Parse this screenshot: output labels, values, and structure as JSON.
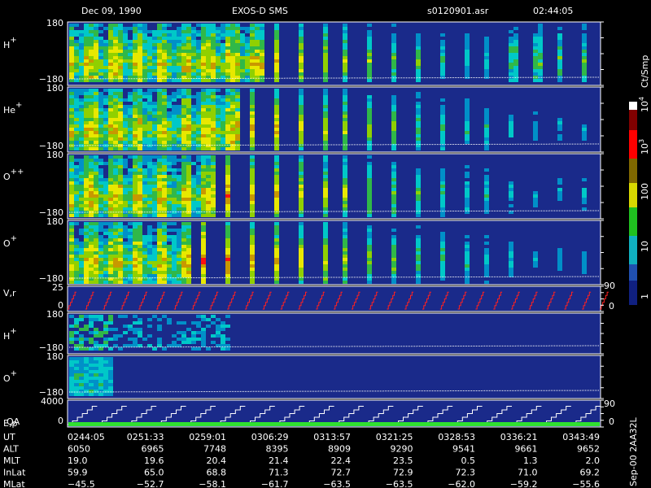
{
  "header": {
    "date": "Dec 09, 1990",
    "instrument": "EXOS-D SMS",
    "file": "s0120901.asr",
    "time": "02:44:05"
  },
  "panels": [
    {
      "label": "H",
      "sup": "+",
      "top": "180",
      "bottom": "−180"
    },
    {
      "label": "He",
      "sup": "+",
      "top": "180",
      "bottom": "−180"
    },
    {
      "label": "O",
      "sup": "++",
      "top": "180",
      "bottom": "−180"
    },
    {
      "label": "O",
      "sup": "+",
      "top": "180",
      "bottom": "−180"
    },
    {
      "label": "V,r",
      "top": "25",
      "bottom": "0",
      "right_top": "90",
      "right_bottom": "0"
    },
    {
      "label": "H",
      "sup": "+",
      "top": "180",
      "bottom": "−180"
    },
    {
      "label": "O",
      "sup": "+",
      "top": "180",
      "bottom": "−180"
    },
    {
      "label": "E,p",
      "label2": "QA",
      "top": "4000",
      "bottom": "0",
      "right_top": "90",
      "right_bottom": "0"
    }
  ],
  "colorbar": {
    "unit": "Ct/Smp",
    "labels": [
      {
        "base": "10",
        "exp": "4"
      },
      {
        "base": "10",
        "exp": "3"
      },
      {
        "base": "100"
      },
      {
        "base": "10"
      },
      {
        "base": "1"
      }
    ]
  },
  "table": {
    "rows": [
      [
        "UT",
        "0244:05",
        "0251:33",
        "0259:01",
        "0306:29",
        "0313:57",
        "0321:25",
        "0328:53",
        "0336:21",
        "0343:49"
      ],
      [
        "ALT",
        "6050",
        "6965",
        "7748",
        "8395",
        "8909",
        "9290",
        "9541",
        "9661",
        "9652"
      ],
      [
        "MLT",
        "19.0",
        "19.6",
        "20.4",
        "21.4",
        "22.4",
        "23.5",
        "0.5",
        "1.3",
        "2.0"
      ],
      [
        "InLat",
        "59.9",
        "65.0",
        "68.8",
        "71.3",
        "72.7",
        "72.9",
        "72.3",
        "71.0",
        "69.2"
      ],
      [
        "MLat",
        "−45.5",
        "−52.7",
        "−58.1",
        "−61.7",
        "−63.5",
        "−63.5",
        "−62.0",
        "−59.2",
        "−55.6"
      ]
    ]
  },
  "footer": "Sep-00  2AA32L"
}
